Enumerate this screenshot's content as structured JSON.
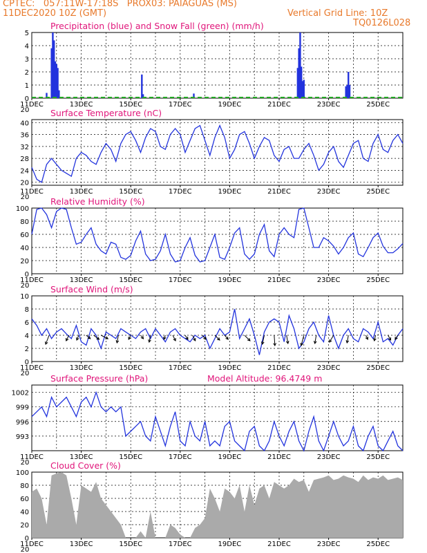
{
  "header": {
    "line1_left": "CPTEC:   057:11W-17:18S   PROX03: PAIAGUAS (MS)",
    "line2_left": "11DEC2020 10Z (GMT)",
    "line2_right": "Vertical Grid Line: 10Z",
    "line3_right": "TQ0126L028",
    "colors": {
      "header": "#e8792b",
      "title": "#e0157a",
      "line": "#2233dd",
      "snow": "#22aa22",
      "cloud": "#aaaaaa"
    }
  },
  "x_labels": [
    "11DEC",
    "13DEC",
    "15DEC",
    "17DEC",
    "19DEC",
    "21DEC",
    "23DEC",
    "25DEC"
  ],
  "year_fragment": "20",
  "chart_data": [
    {
      "type": "bar",
      "title": "Precipitation (blue) and Snow Fall (green) (mm/h)",
      "ylim": [
        0,
        5
      ],
      "yticks": [
        0,
        1,
        2,
        3,
        4,
        5
      ],
      "grid": true,
      "series": [
        {
          "name": "Precipitation",
          "points": [
            [
              0.6,
              0.4
            ],
            [
              0.8,
              3.8
            ],
            [
              0.85,
              5
            ],
            [
              0.9,
              4.4
            ],
            [
              0.95,
              2.8
            ],
            [
              1.0,
              2.6
            ],
            [
              1.05,
              2.3
            ],
            [
              1.1,
              0.6
            ],
            [
              4.45,
              1.8
            ],
            [
              4.5,
              0.3
            ],
            [
              6.55,
              0.35
            ],
            [
              10.75,
              2.3
            ],
            [
              10.8,
              3.8
            ],
            [
              10.85,
              5
            ],
            [
              10.9,
              2.4
            ],
            [
              10.95,
              1.3
            ],
            [
              11.0,
              1.4
            ],
            [
              12.7,
              0.9
            ],
            [
              12.75,
              1.0
            ],
            [
              12.8,
              2.0
            ],
            [
              12.85,
              1.0
            ]
          ]
        },
        {
          "name": "Snow Fall",
          "points": [
            [
              0,
              0.05
            ],
            [
              15,
              0.05
            ]
          ]
        }
      ]
    },
    {
      "type": "line",
      "title": "Surface Temperature (nC)",
      "ylim": [
        19,
        41
      ],
      "yticks": [
        20,
        24,
        28,
        32,
        36,
        40
      ],
      "grid": true,
      "x": [
        0,
        0.2,
        0.4,
        0.6,
        0.8,
        1.0,
        1.2,
        1.4,
        1.6,
        1.8,
        2.0,
        2.2,
        2.4,
        2.6,
        2.8,
        3.0,
        3.2,
        3.4,
        3.6,
        3.8,
        4.0,
        4.2,
        4.4,
        4.6,
        4.8,
        5.0,
        5.2,
        5.4,
        5.6,
        5.8,
        6.0,
        6.2,
        6.4,
        6.6,
        6.8,
        7.0,
        7.2,
        7.4,
        7.6,
        7.8,
        8.0,
        8.2,
        8.4,
        8.6,
        8.8,
        9.0,
        9.2,
        9.4,
        9.6,
        9.8,
        10.0,
        10.2,
        10.4,
        10.6,
        10.8,
        11.0,
        11.2,
        11.4,
        11.6,
        11.8,
        12.0,
        12.2,
        12.4,
        12.6,
        12.8,
        13.0,
        13.2,
        13.4,
        13.6,
        13.8,
        14.0,
        14.2,
        14.4,
        14.6,
        14.8,
        15.0
      ],
      "y": [
        25,
        21,
        20,
        26,
        28,
        26,
        24,
        23,
        22,
        28,
        30,
        29,
        27,
        26,
        30,
        33,
        31,
        27,
        33,
        36,
        37,
        34,
        30,
        35,
        38,
        37,
        32,
        31,
        36,
        38,
        36,
        30,
        34,
        38,
        39,
        34,
        29,
        35,
        39,
        35,
        28,
        31,
        36,
        37,
        33,
        28,
        32,
        35,
        34,
        29,
        27,
        31,
        32,
        28,
        28,
        31,
        33,
        29,
        24,
        26,
        30,
        32,
        27,
        25,
        29,
        33,
        34,
        28,
        27,
        33,
        36,
        31,
        30,
        34,
        36,
        33
      ]
    },
    {
      "type": "line",
      "title": "Relative Humidity (%)",
      "ylim": [
        0,
        100
      ],
      "yticks": [
        0,
        20,
        40,
        60,
        80,
        100
      ],
      "grid": true,
      "x": [
        0,
        0.2,
        0.4,
        0.6,
        0.8,
        1.0,
        1.2,
        1.4,
        1.6,
        1.8,
        2.0,
        2.2,
        2.4,
        2.6,
        2.8,
        3.0,
        3.2,
        3.4,
        3.6,
        3.8,
        4.0,
        4.2,
        4.4,
        4.6,
        4.8,
        5.0,
        5.2,
        5.4,
        5.6,
        5.8,
        6.0,
        6.2,
        6.4,
        6.6,
        6.8,
        7.0,
        7.2,
        7.4,
        7.6,
        7.8,
        8.0,
        8.2,
        8.4,
        8.6,
        8.8,
        9.0,
        9.2,
        9.4,
        9.6,
        9.8,
        10.0,
        10.2,
        10.4,
        10.6,
        10.8,
        11.0,
        11.2,
        11.4,
        11.6,
        11.8,
        12.0,
        12.2,
        12.4,
        12.6,
        12.8,
        13.0,
        13.2,
        13.4,
        13.6,
        13.8,
        14.0,
        14.2,
        14.4,
        14.6,
        14.8,
        15.0
      ],
      "y": [
        60,
        98,
        100,
        90,
        70,
        95,
        100,
        98,
        70,
        45,
        48,
        60,
        70,
        45,
        35,
        30,
        48,
        45,
        25,
        22,
        28,
        50,
        65,
        30,
        20,
        22,
        35,
        60,
        30,
        18,
        20,
        40,
        55,
        28,
        18,
        20,
        40,
        60,
        25,
        22,
        40,
        62,
        70,
        30,
        22,
        30,
        60,
        75,
        35,
        26,
        60,
        70,
        60,
        55,
        98,
        100,
        70,
        40,
        40,
        55,
        50,
        42,
        30,
        40,
        55,
        62,
        30,
        26,
        40,
        55,
        62,
        42,
        32,
        32,
        38,
        46
      ]
    },
    {
      "type": "line",
      "title": "Surface Wind (m/s)",
      "ylim": [
        0,
        10
      ],
      "yticks": [
        0,
        2,
        4,
        6,
        8,
        10
      ],
      "grid": true,
      "x": [
        0,
        0.2,
        0.4,
        0.6,
        0.8,
        1.0,
        1.2,
        1.4,
        1.6,
        1.8,
        2.0,
        2.2,
        2.4,
        2.6,
        2.8,
        3.0,
        3.2,
        3.4,
        3.6,
        3.8,
        4.0,
        4.2,
        4.4,
        4.6,
        4.8,
        5.0,
        5.2,
        5.4,
        5.6,
        5.8,
        6.0,
        6.2,
        6.4,
        6.6,
        6.8,
        7.0,
        7.2,
        7.4,
        7.6,
        7.8,
        8.0,
        8.2,
        8.4,
        8.6,
        8.8,
        9.0,
        9.2,
        9.4,
        9.6,
        9.8,
        10.0,
        10.2,
        10.4,
        10.6,
        10.8,
        11.0,
        11.2,
        11.4,
        11.6,
        11.8,
        12.0,
        12.2,
        12.4,
        12.6,
        12.8,
        13.0,
        13.2,
        13.4,
        13.6,
        13.8,
        14.0,
        14.2,
        14.4,
        14.6,
        14.8,
        15.0
      ],
      "y": [
        6.5,
        5.5,
        4,
        5,
        3.5,
        4.5,
        5,
        4.2,
        3.5,
        5.5,
        3,
        2.5,
        5,
        4,
        2,
        4.5,
        4,
        3.5,
        5,
        4.5,
        4,
        3.5,
        4.5,
        5,
        3.5,
        5,
        4,
        3,
        4.5,
        5,
        4,
        3.5,
        3,
        4,
        3.5,
        4,
        2,
        3.5,
        5,
        4,
        4.5,
        8,
        3.5,
        5,
        6.5,
        4,
        1,
        4.5,
        6,
        6.5,
        6,
        3,
        7,
        5,
        2,
        3,
        5,
        6,
        4,
        3,
        7,
        4,
        2,
        4,
        5,
        3.5,
        3,
        5,
        4.5,
        3.5,
        6,
        3,
        3.5,
        2.5,
        4,
        5
      ]
    },
    {
      "type": "line",
      "title": "Surface Pressure (hPa)",
      "annotation": "Model Altitude: 96.4749 m",
      "ylim": [
        990,
        1003.5
      ],
      "yticks": [
        993,
        996,
        999,
        1002
      ],
      "grid": true,
      "x": [
        0,
        0.2,
        0.4,
        0.6,
        0.8,
        1.0,
        1.2,
        1.4,
        1.6,
        1.8,
        2.0,
        2.2,
        2.4,
        2.6,
        2.8,
        3.0,
        3.2,
        3.4,
        3.6,
        3.8,
        4.0,
        4.2,
        4.4,
        4.6,
        4.8,
        5.0,
        5.2,
        5.4,
        5.6,
        5.8,
        6.0,
        6.2,
        6.4,
        6.6,
        6.8,
        7.0,
        7.2,
        7.4,
        7.6,
        7.8,
        8.0,
        8.2,
        8.4,
        8.6,
        8.8,
        9.0,
        9.2,
        9.4,
        9.6,
        9.8,
        10.0,
        10.2,
        10.4,
        10.6,
        10.8,
        11.0,
        11.2,
        11.4,
        11.6,
        11.8,
        12.0,
        12.2,
        12.4,
        12.6,
        12.8,
        13.0,
        13.2,
        13.4,
        13.6,
        13.8,
        14.0,
        14.2,
        14.4,
        14.6,
        14.8,
        15.0
      ],
      "y": [
        997,
        998,
        999,
        997,
        1001,
        999,
        1000,
        1001,
        999,
        997,
        1000,
        1001,
        999,
        1002,
        999,
        998,
        999,
        998,
        999,
        993,
        994,
        995,
        996,
        993,
        992,
        997,
        994,
        991,
        995,
        998,
        992,
        991,
        996,
        993,
        992,
        996,
        991,
        992,
        991,
        995,
        996,
        992,
        991,
        990,
        994,
        995,
        991,
        990,
        992,
        996,
        993,
        991,
        994,
        996,
        992,
        990,
        994,
        997,
        992,
        990,
        993,
        996,
        993,
        991,
        992,
        995,
        991,
        990,
        993,
        995,
        991,
        990,
        992,
        994,
        991,
        990
      ]
    },
    {
      "type": "area",
      "title": "Cloud Cover (%)",
      "ylim": [
        0,
        100
      ],
      "yticks": [
        0,
        20,
        40,
        60,
        80,
        100
      ],
      "grid": true,
      "x": [
        0,
        0.2,
        0.4,
        0.6,
        0.8,
        1.0,
        1.2,
        1.4,
        1.6,
        1.8,
        2.0,
        2.2,
        2.4,
        2.6,
        2.8,
        3.0,
        3.2,
        3.4,
        3.6,
        3.8,
        4.0,
        4.2,
        4.4,
        4.6,
        4.8,
        5.0,
        5.2,
        5.4,
        5.6,
        5.8,
        6.0,
        6.2,
        6.4,
        6.6,
        6.8,
        7.0,
        7.2,
        7.4,
        7.6,
        7.8,
        8.0,
        8.2,
        8.4,
        8.6,
        8.8,
        9.0,
        9.2,
        9.4,
        9.6,
        9.8,
        10.0,
        10.2,
        10.4,
        10.6,
        10.8,
        11.0,
        11.2,
        11.4,
        11.6,
        11.8,
        12.0,
        12.2,
        12.4,
        12.6,
        12.8,
        13.0,
        13.2,
        13.4,
        13.6,
        13.8,
        14.0,
        14.2,
        14.4,
        14.6,
        14.8,
        15.0
      ],
      "y": [
        70,
        75,
        60,
        20,
        95,
        98,
        100,
        95,
        60,
        20,
        80,
        75,
        70,
        85,
        60,
        50,
        40,
        30,
        20,
        0,
        0,
        0,
        10,
        0,
        40,
        0,
        0,
        0,
        20,
        15,
        5,
        0,
        0,
        15,
        20,
        30,
        75,
        60,
        40,
        75,
        70,
        60,
        80,
        40,
        80,
        50,
        75,
        80,
        60,
        85,
        80,
        75,
        80,
        90,
        85,
        88,
        70,
        88,
        90,
        92,
        95,
        88,
        90,
        95,
        92,
        90,
        85,
        95,
        88,
        92,
        90,
        95,
        88,
        90,
        92,
        88
      ]
    }
  ],
  "wind_arrows": [
    {
      "x": 0.7,
      "u": -0.5,
      "v": -1.3
    },
    {
      "x": 1.5,
      "u": -0.4,
      "v": -0.8
    },
    {
      "x": 1.9,
      "u": -0.3,
      "v": -0.7
    },
    {
      "x": 2.2,
      "u": 0.6,
      "v": -0.5
    },
    {
      "x": 2.5,
      "u": 0.8,
      "v": -0.6
    },
    {
      "x": 2.8,
      "u": 1.0,
      "v": -0.5
    },
    {
      "x": 3.5,
      "u": -0.2,
      "v": -1.1
    },
    {
      "x": 4.0,
      "u": -0.3,
      "v": -0.6
    },
    {
      "x": 4.4,
      "u": 0.4,
      "v": -0.5
    },
    {
      "x": 4.8,
      "u": -0.2,
      "v": -1.0
    },
    {
      "x": 5.4,
      "u": -0.2,
      "v": -0.6
    },
    {
      "x": 5.7,
      "u": 0.4,
      "v": -0.8
    },
    {
      "x": 6.2,
      "u": 0.4,
      "v": -0.6
    },
    {
      "x": 6.5,
      "u": 0.4,
      "v": -0.8
    },
    {
      "x": 6.9,
      "u": 0.5,
      "v": -0.6
    },
    {
      "x": 7.4,
      "u": 0.7,
      "v": -0.7
    },
    {
      "x": 7.8,
      "u": 0.5,
      "v": -0.6
    },
    {
      "x": 8.6,
      "u": 0.8,
      "v": -0.8
    },
    {
      "x": 9.4,
      "u": -0.3,
      "v": -1.3
    },
    {
      "x": 9.8,
      "u": 0.1,
      "v": -1.5
    },
    {
      "x": 10.3,
      "u": 0.2,
      "v": -1.2
    },
    {
      "x": 11.0,
      "u": -0.4,
      "v": -1.5
    },
    {
      "x": 11.5,
      "u": -0.2,
      "v": -1.2
    },
    {
      "x": 12.2,
      "u": -0.6,
      "v": -1.0
    },
    {
      "x": 12.8,
      "u": -0.2,
      "v": -1.1
    },
    {
      "x": 13.5,
      "u": 0.3,
      "v": -0.6
    },
    {
      "x": 13.9,
      "u": -0.2,
      "v": -0.8
    },
    {
      "x": 14.4,
      "u": 0.4,
      "v": -0.7
    },
    {
      "x": 14.8,
      "u": -0.4,
      "v": -0.6
    }
  ]
}
